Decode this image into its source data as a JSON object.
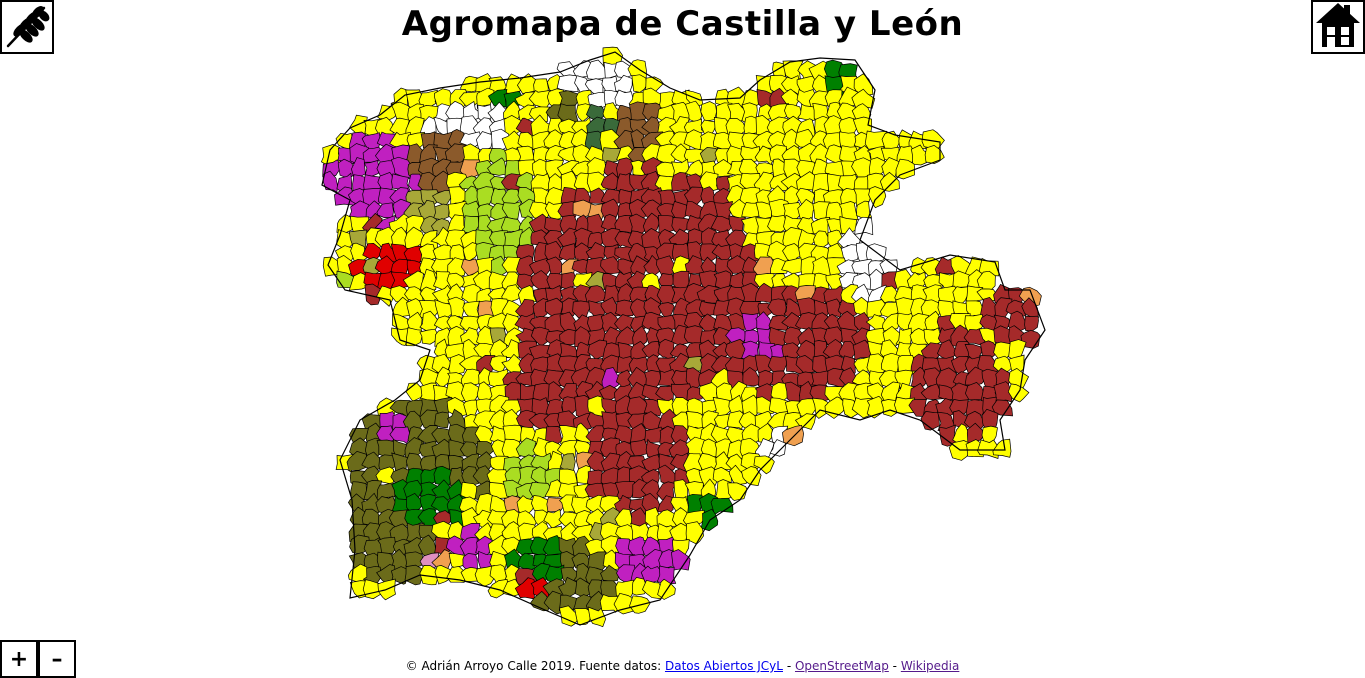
{
  "title": "Agromapa de Castilla y León",
  "icons": {
    "left": "wheat-icon",
    "right": "home-icon"
  },
  "zoom": {
    "in_label": "+",
    "out_label": "–"
  },
  "footer": {
    "copyright": "© Adrián Arroyo Calle 2019. Fuente datos:",
    "sep1": "-",
    "sep2": "-",
    "links": [
      "Datos Abiertos JCyL",
      "OpenStreetMap",
      "Wikipedia"
    ]
  },
  "map": {
    "colors": {
      "yellow": "#ffff00",
      "darkred": "#a52a2a",
      "magenta": "#c020c0",
      "green": "#008000",
      "olive": "#6b6b1a",
      "olivelight": "#a8a838",
      "lime": "#aadd22",
      "red": "#e00000",
      "white": "#ffffff",
      "brown": "#8b5a2b",
      "orange": "#f0a050",
      "darkgreen": "#3a6a3a",
      "pink": "#e090c0"
    }
  }
}
